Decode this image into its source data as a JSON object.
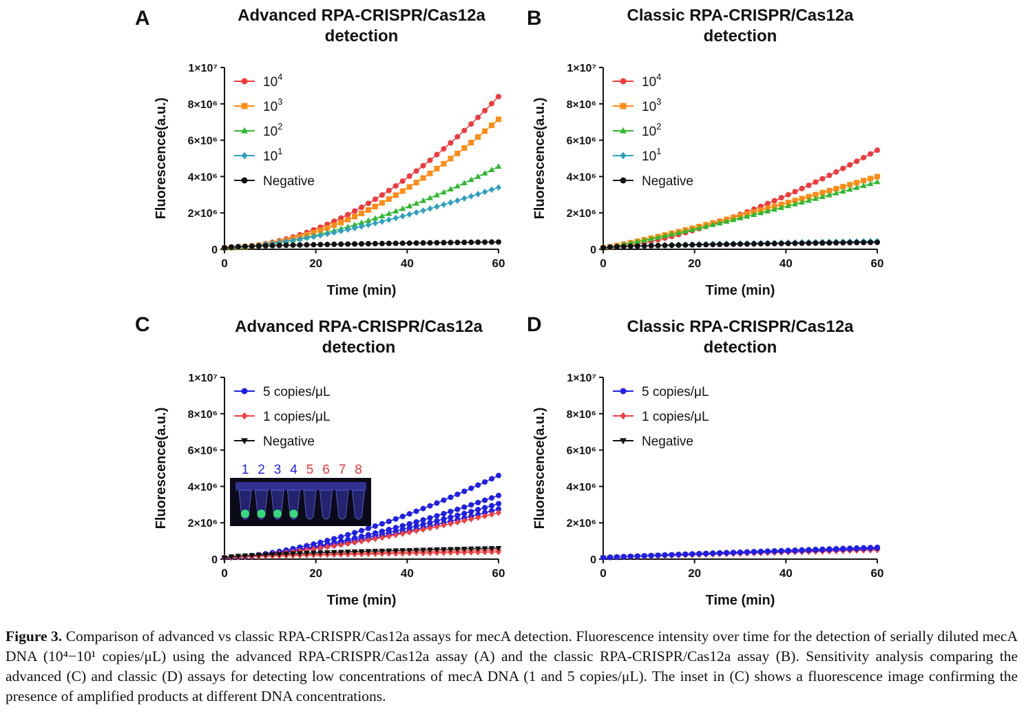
{
  "panels": [
    {
      "letter": "A",
      "title_line1": "Advanced RPA-CRISPR/Cas12a",
      "title_line2": "detection",
      "chart_data": {
        "type": "line",
        "title": "Advanced RPA-CRISPR/Cas12a detection",
        "xlabel": "Time (min)",
        "ylabel": "Fluorescence(a.u.)",
        "xlim": [
          0,
          60
        ],
        "ylim": [
          0,
          10000000
        ],
        "xticks": [
          0,
          20,
          40,
          60
        ],
        "ytick_labels": [
          "0",
          "2×10⁶",
          "4×10⁶",
          "6×10⁶",
          "8×10⁶",
          "1×10⁷"
        ],
        "legend_position": "top-left",
        "series": [
          {
            "name": "10^4",
            "label_base": "10",
            "label_sup": "4",
            "color": "#f0393b",
            "marker": "circle",
            "final": 8400000,
            "exp": 1.9
          },
          {
            "name": "10^3",
            "label_base": "10",
            "label_sup": "3",
            "color": "#ff8c14",
            "marker": "square",
            "final": 7150000,
            "exp": 1.9
          },
          {
            "name": "10^2",
            "label_base": "10",
            "label_sup": "2",
            "color": "#2fb82f",
            "marker": "triangle",
            "final": 4550000,
            "exp": 1.7
          },
          {
            "name": "10^1",
            "label_base": "10",
            "label_sup": "1",
            "color": "#2f9fbf",
            "marker": "diamond",
            "final": 3400000,
            "exp": 1.5
          },
          {
            "name": "Negative",
            "label_base": "Negative",
            "label_sup": "",
            "color": "#111111",
            "marker": "circle",
            "final": 400000,
            "exp": 0.55
          }
        ]
      }
    },
    {
      "letter": "B",
      "title_line1": "Classic RPA-CRISPR/Cas12a",
      "title_line2": "detection",
      "chart_data": {
        "type": "line",
        "title": "Classic RPA-CRISPR/Cas12a detection",
        "xlabel": "Time (min)",
        "ylabel": "Fluorescence(a.u.)",
        "xlim": [
          0,
          60
        ],
        "ylim": [
          0,
          10000000
        ],
        "xticks": [
          0,
          20,
          40,
          60
        ],
        "ytick_labels": [
          "0",
          "2×10⁶",
          "4×10⁶",
          "6×10⁶",
          "8×10⁶",
          "1×10⁷"
        ],
        "legend_position": "top-left",
        "series": [
          {
            "name": "10^4",
            "label_base": "10",
            "label_sup": "4",
            "color": "#f0393b",
            "marker": "circle",
            "final": 5450000,
            "exp": 1.55
          },
          {
            "name": "10^3",
            "label_base": "10",
            "label_sup": "3",
            "color": "#ff8c14",
            "marker": "square",
            "final": 4000000,
            "exp": 1.15
          },
          {
            "name": "10^2",
            "label_base": "10",
            "label_sup": "2",
            "color": "#2fb82f",
            "marker": "triangle",
            "final": 3700000,
            "exp": 1.15
          },
          {
            "name": "10^1",
            "label_base": "10",
            "label_sup": "1",
            "color": "#2f9fbf",
            "marker": "diamond",
            "final": 450000,
            "exp": 0.6
          },
          {
            "name": "Negative",
            "label_base": "Negative",
            "label_sup": "",
            "color": "#111111",
            "marker": "circle",
            "final": 380000,
            "exp": 0.55
          }
        ]
      }
    },
    {
      "letter": "C",
      "title_line1": "Advanced RPA-CRISPR/Cas12a",
      "title_line2": "detection",
      "inset": {
        "tube_numbers": [
          "1",
          "2",
          "3",
          "4",
          "5",
          "6",
          "7",
          "8"
        ],
        "number_colors": [
          "#2222ee",
          "#2222ee",
          "#2222ee",
          "#2222ee",
          "#ee3333",
          "#ee3333",
          "#ee3333",
          "#ee3333"
        ],
        "positive_tubes": [
          1,
          2,
          3,
          4
        ]
      },
      "chart_data": {
        "type": "line",
        "title": "Advanced RPA-CRISPR/Cas12a detection",
        "xlabel": "Time (min)",
        "ylabel": "Fluorescence(a.u.)",
        "xlim": [
          0,
          60
        ],
        "ylim": [
          0,
          10000000
        ],
        "xticks": [
          0,
          20,
          40,
          60
        ],
        "ytick_labels": [
          "0",
          "2×10⁶",
          "4×10⁶",
          "6×10⁶",
          "8×10⁶",
          "1×10⁷"
        ],
        "legend_position": "top-left",
        "legend": [
          {
            "label": "5 copies/μL",
            "color": "#1f1fe6",
            "marker": "circle"
          },
          {
            "label": "1 copies/μL",
            "color": "#f04040",
            "marker": "diamond"
          },
          {
            "label": "Negative",
            "color": "#111111",
            "marker": "triangle-down"
          }
        ],
        "series": [
          {
            "name": "5 copies/μL",
            "color": "#1f1fe6",
            "marker": "circle",
            "final": 4600000,
            "exp": 1.6
          },
          {
            "name": "5 copies/μL",
            "color": "#1f1fe6",
            "marker": "circle",
            "final": 3500000,
            "exp": 1.55
          },
          {
            "name": "5 copies/μL",
            "color": "#1f1fe6",
            "marker": "circle",
            "final": 3050000,
            "exp": 1.5
          },
          {
            "name": "5 copies/μL",
            "color": "#1f1fe6",
            "marker": "circle",
            "final": 2750000,
            "exp": 1.5
          },
          {
            "name": "1 copies/μL",
            "color": "#f04040",
            "marker": "diamond",
            "final": 2550000,
            "exp": 1.45
          },
          {
            "name": "1 copies/μL",
            "color": "#f04040",
            "marker": "diamond",
            "final": 400000,
            "exp": 0.7
          },
          {
            "name": "1 copies/μL",
            "color": "#f04040",
            "marker": "diamond",
            "final": 500000,
            "exp": 0.7
          },
          {
            "name": "Negative",
            "color": "#111111",
            "marker": "triangle-down",
            "final": 600000,
            "exp": 0.6
          }
        ]
      }
    },
    {
      "letter": "D",
      "title_line1": "Classic RPA-CRISPR/Cas12a",
      "title_line2": "detection",
      "chart_data": {
        "type": "line",
        "title": "Classic RPA-CRISPR/Cas12a detection",
        "xlabel": "Time (min)",
        "ylabel": "Fluorescence(a.u.)",
        "xlim": [
          0,
          60
        ],
        "ylim": [
          0,
          10000000
        ],
        "xticks": [
          0,
          20,
          40,
          60
        ],
        "ytick_labels": [
          "0",
          "2×10⁶",
          "4×10⁶",
          "6×10⁶",
          "8×10⁶",
          "1×10⁷"
        ],
        "legend_position": "top-left",
        "legend": [
          {
            "label": "5 copies/μL",
            "color": "#1f1fe6",
            "marker": "circle"
          },
          {
            "label": "1 copies/μL",
            "color": "#f04040",
            "marker": "diamond"
          },
          {
            "label": "Negative",
            "color": "#111111",
            "marker": "triangle-down"
          }
        ],
        "series": [
          {
            "name": "Negative",
            "color": "#111111",
            "marker": "triangle-down",
            "final": 550000,
            "exp": 0.9
          },
          {
            "name": "1 copies/μL",
            "color": "#f04040",
            "marker": "diamond",
            "final": 500000,
            "exp": 0.9
          },
          {
            "name": "1 copies/μL",
            "color": "#f04040",
            "marker": "diamond",
            "final": 550000,
            "exp": 0.9
          },
          {
            "name": "5 copies/μL",
            "color": "#1f1fe6",
            "marker": "circle",
            "final": 600000,
            "exp": 0.9
          },
          {
            "name": "5 copies/μL",
            "color": "#1f1fe6",
            "marker": "circle",
            "final": 650000,
            "exp": 0.9
          }
        ]
      }
    }
  ],
  "caption": {
    "figure_label": "Figure 3.",
    "text": " Comparison of advanced vs classic RPA-CRISPR/Cas12a assays for mecA detection. Fluorescence intensity over time for the detection of serially diluted mecA DNA (10⁴−10¹ copies/μL) using the advanced RPA-CRISPR/Cas12a assay (A) and the classic RPA-CRISPR/Cas12a assay (B). Sensitivity analysis comparing the advanced (C) and classic (D) assays for detecting low concentrations of mecA DNA (1 and 5 copies/μL). The inset in (C) shows a fluorescence image confirming the presence of amplified products at different DNA concentrations."
  }
}
